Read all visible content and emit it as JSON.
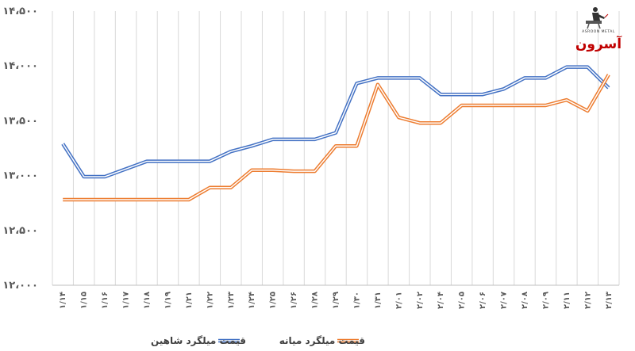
{
  "logo": {
    "text": "آسرون",
    "subtext": "ASROON METAL"
  },
  "chart_data": {
    "type": "line",
    "title": "",
    "xlabel": "",
    "ylabel": "",
    "ylim": [
      12000,
      14500
    ],
    "yticks": [
      "۱۲،۰۰۰",
      "۱۲،۵۰۰",
      "۱۳،۰۰۰",
      "۱۳،۵۰۰",
      "۱۴،۰۰۰",
      "۱۴،۵۰۰"
    ],
    "ytick_values": [
      12000,
      12500,
      13000,
      13500,
      14000,
      14500
    ],
    "categories": [
      "۱/۱۴",
      "۱/۱۵",
      "۱/۱۶",
      "۱/۱۷",
      "۱/۱۸",
      "۱/۱۹",
      "۱/۲۱",
      "۱/۲۲",
      "۱/۲۳",
      "۱/۲۴",
      "۱/۲۵",
      "۱/۲۶",
      "۱/۲۸",
      "۱/۲۹",
      "۱/۳۰",
      "۱/۳۱",
      "۲/۰۱",
      "۲/۰۲",
      "۲/۰۴",
      "۲/۰۵",
      "۲/۰۶",
      "۲/۰۷",
      "۲/۰۸",
      "۲/۰۹",
      "۲/۱۱",
      "۲/۱۲",
      "۲/۱۳"
    ],
    "grid": {
      "x": true,
      "y": false
    },
    "legend_position": "bottom",
    "series": [
      {
        "name": "قیمت میلگرد شاهین",
        "color": "#4472c4",
        "values": [
          13290,
          12990,
          12990,
          13060,
          13130,
          13130,
          13130,
          13130,
          13220,
          13270,
          13330,
          13330,
          13330,
          13390,
          13840,
          13890,
          13890,
          13890,
          13740,
          13740,
          13740,
          13790,
          13890,
          13890,
          13990,
          13990,
          13800
        ]
      },
      {
        "name": "قیمت میلگرد میانه",
        "color": "#ed7d31",
        "values": [
          12780,
          12780,
          12780,
          12780,
          12780,
          12780,
          12780,
          12890,
          12890,
          13050,
          13050,
          13040,
          13040,
          13270,
          13270,
          13830,
          13530,
          13480,
          13480,
          13640,
          13640,
          13640,
          13640,
          13640,
          13690,
          13590,
          13920
        ]
      }
    ]
  }
}
